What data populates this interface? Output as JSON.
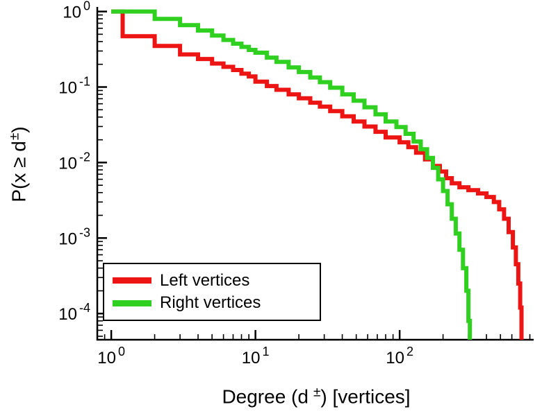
{
  "chart_data": {
    "type": "line",
    "line_style": "step-after",
    "title": "",
    "xscale": "log",
    "yscale": "log",
    "xlim": [
      0.8,
      850
    ],
    "ylim": [
      4.5e-05,
      1.15
    ],
    "grid": false,
    "background": "#ffffff",
    "axis_color": "#000000",
    "tick_mantissa": "10",
    "x_major_tick_exponents": [
      0,
      1,
      2
    ],
    "y_major_tick_exponents": [
      0,
      -1,
      -2,
      -3,
      -4
    ],
    "xlabel": "Degree (d±) [vertices]",
    "ylabel": "P(x ≥ d±)",
    "labels": {
      "x_prefix": "Degree (d",
      "x_sup": "±",
      "x_suffix": ") [vertices]",
      "y_prefix": "P(x ≥ d",
      "y_sup": "±",
      "y_suffix": ")"
    },
    "legend": {
      "position": "lower-left",
      "border_color": "#000000",
      "background": "#ffffff"
    },
    "series": [
      {
        "name": "Left vertices",
        "color": "#ed1414",
        "x": [
          1,
          1.2,
          2,
          3,
          4,
          5,
          6,
          7,
          8,
          9,
          10,
          12,
          14,
          17,
          20,
          24,
          28,
          33,
          40,
          48,
          57,
          68,
          80,
          100,
          115,
          130,
          150,
          170,
          190,
          210,
          230,
          260,
          300,
          350,
          400,
          450,
          490,
          530,
          570,
          610,
          640,
          665,
          685,
          700
        ],
        "y": [
          1.0,
          0.47,
          0.35,
          0.27,
          0.235,
          0.205,
          0.185,
          0.168,
          0.15,
          0.138,
          0.118,
          0.103,
          0.092,
          0.08,
          0.071,
          0.062,
          0.055,
          0.048,
          0.041,
          0.035,
          0.03,
          0.0255,
          0.0215,
          0.0185,
          0.016,
          0.0135,
          0.011,
          0.009,
          0.0076,
          0.0062,
          0.0053,
          0.0047,
          0.0043,
          0.0039,
          0.0035,
          0.003,
          0.0024,
          0.0018,
          0.0012,
          0.00075,
          0.00045,
          0.00025,
          0.00012,
          4e-05
        ]
      },
      {
        "name": "Right vertices",
        "color": "#2fd020",
        "x": [
          1,
          2,
          3,
          4,
          5,
          6,
          7,
          8,
          9,
          10,
          12,
          14,
          17,
          20,
          24,
          28,
          33,
          40,
          48,
          57,
          68,
          80,
          95,
          110,
          125,
          140,
          155,
          170,
          185,
          200,
          215,
          230,
          245,
          260,
          275,
          290,
          300,
          307
        ],
        "y": [
          1.0,
          0.8,
          0.66,
          0.56,
          0.48,
          0.42,
          0.375,
          0.34,
          0.31,
          0.285,
          0.245,
          0.215,
          0.182,
          0.158,
          0.134,
          0.116,
          0.098,
          0.08,
          0.066,
          0.054,
          0.0435,
          0.035,
          0.0295,
          0.024,
          0.019,
          0.015,
          0.0115,
          0.0085,
          0.006,
          0.0042,
          0.0028,
          0.0018,
          0.00115,
          0.0007,
          0.0004,
          0.0002,
          8e-05,
          4e-05
        ]
      }
    ]
  }
}
